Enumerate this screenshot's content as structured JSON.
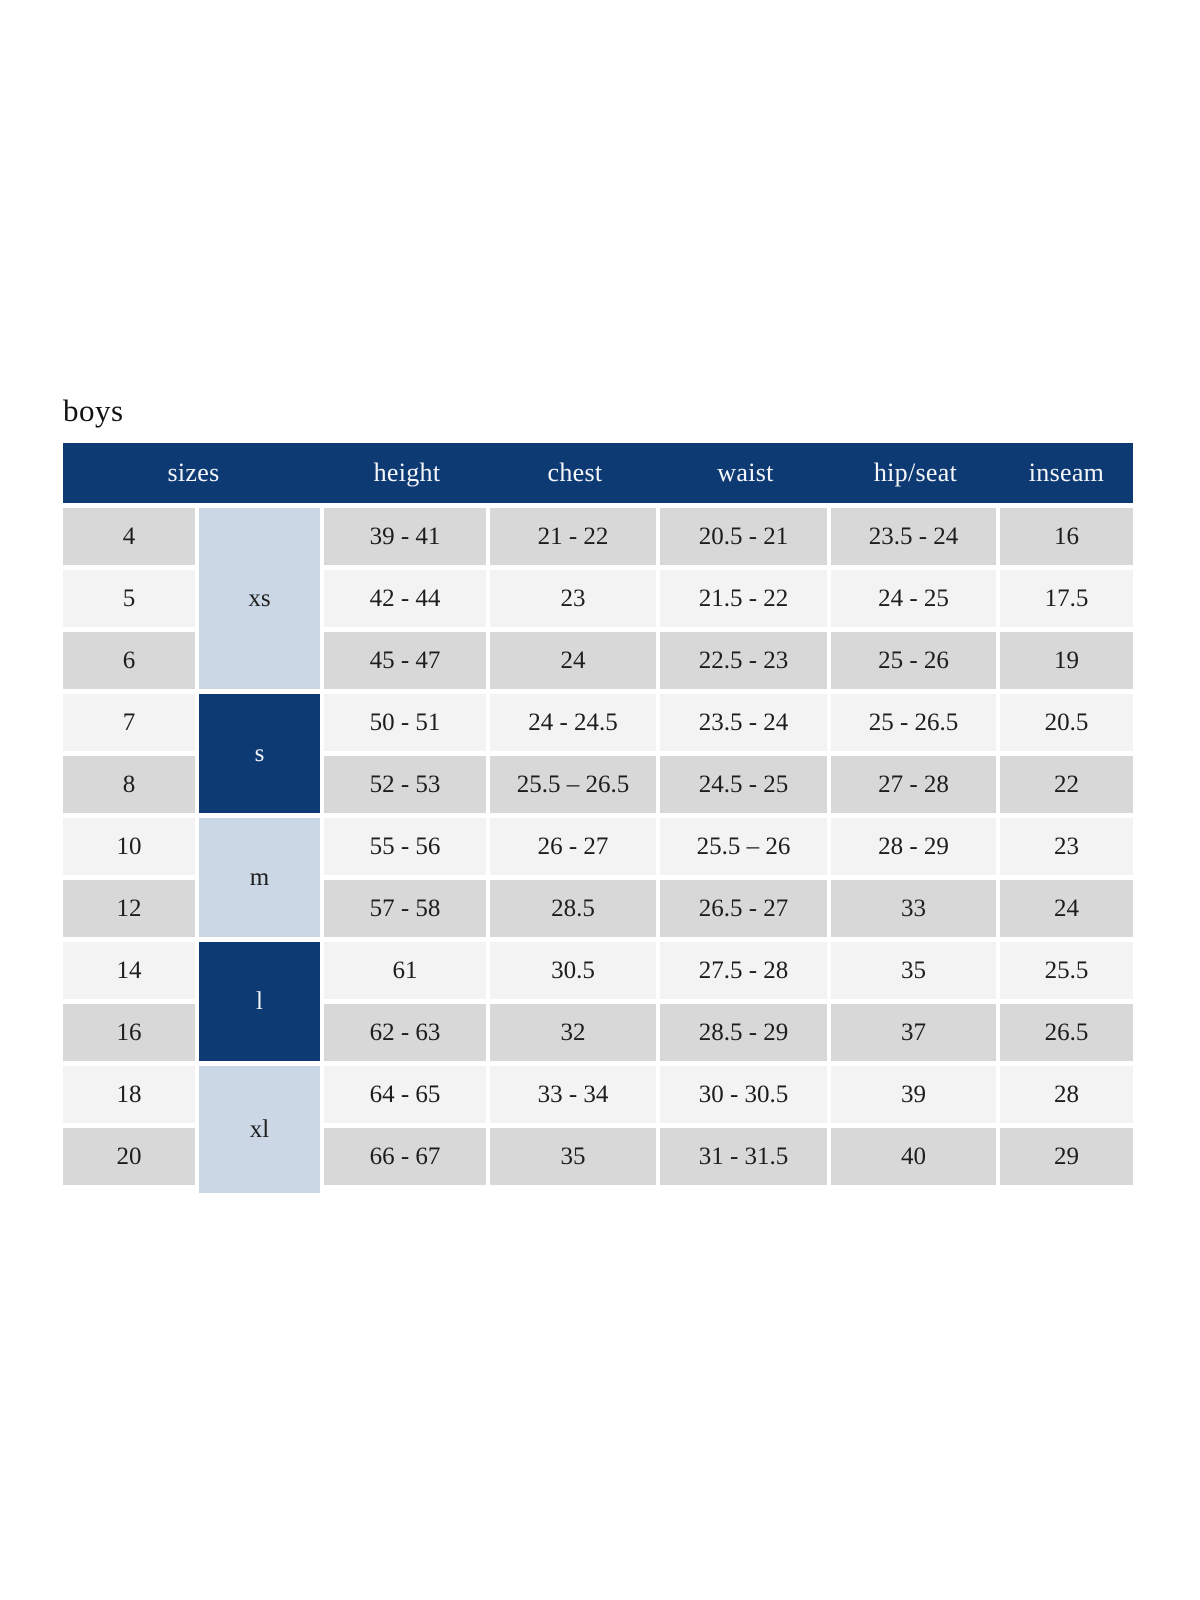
{
  "page": {
    "title": "boys"
  },
  "colors": {
    "header_navy": "#0e3a74",
    "group_light_blue": "#ccd7e5",
    "row_gray_dark": "#d8d8d8",
    "row_gray_light": "#f3f3f3",
    "header_text": "#f4f6f9",
    "body_text": "#1d1d1d",
    "background": "#ffffff"
  },
  "table": {
    "headers": [
      "sizes",
      "height",
      "chest",
      "waist",
      "hip/seat",
      "inseam"
    ],
    "groups": [
      {
        "label": "xs",
        "sizes": [
          "4",
          "5",
          "6"
        ]
      },
      {
        "label": "s",
        "sizes": [
          "7",
          "8"
        ]
      },
      {
        "label": "m",
        "sizes": [
          "10",
          "12"
        ]
      },
      {
        "label": "l",
        "sizes": [
          "14",
          "16"
        ]
      },
      {
        "label": "xl",
        "sizes": [
          "18",
          "20"
        ]
      }
    ],
    "rows": [
      {
        "size": "4",
        "height": "39 - 41",
        "chest": "21 - 22",
        "waist": "20.5 - 21",
        "hip_seat": "23.5 - 24",
        "inseam": "16"
      },
      {
        "size": "5",
        "height": "42 - 44",
        "chest": "23",
        "waist": "21.5 - 22",
        "hip_seat": "24 - 25",
        "inseam": "17.5"
      },
      {
        "size": "6",
        "height": "45 - 47",
        "chest": "24",
        "waist": "22.5 - 23",
        "hip_seat": "25 - 26",
        "inseam": "19"
      },
      {
        "size": "7",
        "height": "50 - 51",
        "chest": "24 - 24.5",
        "waist": "23.5 - 24",
        "hip_seat": "25 - 26.5",
        "inseam": "20.5"
      },
      {
        "size": "8",
        "height": "52 - 53",
        "chest": "25.5 – 26.5",
        "waist": "24.5 - 25",
        "hip_seat": "27 - 28",
        "inseam": "22"
      },
      {
        "size": "10",
        "height": "55 - 56",
        "chest": "26 - 27",
        "waist": "25.5 – 26",
        "hip_seat": "28 - 29",
        "inseam": "23"
      },
      {
        "size": "12",
        "height": "57 - 58",
        "chest": "28.5",
        "waist": "26.5 - 27",
        "hip_seat": "33",
        "inseam": "24"
      },
      {
        "size": "14",
        "height": "61",
        "chest": "30.5",
        "waist": "27.5 - 28",
        "hip_seat": "35",
        "inseam": "25.5"
      },
      {
        "size": "16",
        "height": "62 - 63",
        "chest": "32",
        "waist": "28.5 - 29",
        "hip_seat": "37",
        "inseam": "26.5"
      },
      {
        "size": "18",
        "height": "64 - 65",
        "chest": "33 - 34",
        "waist": "30 - 30.5",
        "hip_seat": "39",
        "inseam": "28"
      },
      {
        "size": "20",
        "height": "66 - 67",
        "chest": "35",
        "waist": "31 - 31.5",
        "hip_seat": "40",
        "inseam": "29"
      }
    ]
  }
}
